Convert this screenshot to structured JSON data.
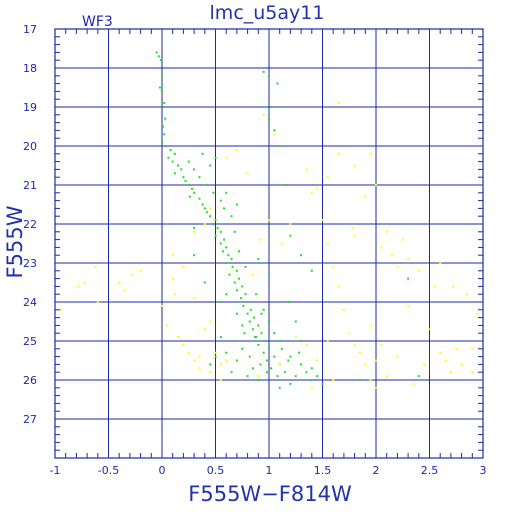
{
  "chart_data": {
    "type": "scatter",
    "title": "lmc_u5ay11",
    "chip_label": "WF3",
    "xlabel": "F555W−F814W",
    "ylabel": "F555W",
    "xlim": [
      -1,
      3
    ],
    "ylim": [
      28,
      17
    ],
    "y_inverted": true,
    "xticks": [
      "-1",
      "-0.5",
      "0",
      "0.5",
      "1",
      "1.5",
      "2",
      "2.5",
      "3"
    ],
    "xtick_values": [
      -1,
      -0.5,
      0,
      0.5,
      1,
      1.5,
      2,
      2.5,
      3
    ],
    "yticks": [
      "17",
      "18",
      "19",
      "20",
      "21",
      "22",
      "23",
      "24",
      "25",
      "26",
      "27"
    ],
    "ytick_values": [
      17,
      18,
      19,
      20,
      21,
      22,
      23,
      24,
      25,
      26,
      27
    ],
    "grid": true,
    "colors": {
      "frame": "#1a2aa8",
      "main": "#22dd22",
      "field": "#ffff00",
      "text": "#2233aa"
    },
    "series": [
      {
        "color": "#22dd22",
        "points": [
          [
            -0.05,
            17.6
          ],
          [
            -0.03,
            17.7
          ],
          [
            -0.01,
            17.8
          ],
          [
            0,
            18.2
          ],
          [
            -0.02,
            18.5
          ],
          [
            0,
            18.6
          ],
          [
            0.02,
            18.9
          ],
          [
            -0.01,
            19
          ],
          [
            0.03,
            19.3
          ],
          [
            0.01,
            19.5
          ],
          [
            0.02,
            19.7
          ],
          [
            0,
            19.9
          ],
          [
            0.04,
            20
          ],
          [
            0.08,
            20.1
          ],
          [
            0.12,
            20.2
          ],
          [
            0.06,
            20.3
          ],
          [
            0.1,
            20.4
          ],
          [
            0.15,
            20.5
          ],
          [
            0.18,
            20.6
          ],
          [
            0.12,
            20.7
          ],
          [
            0.2,
            20.8
          ],
          [
            0.22,
            20.9
          ],
          [
            0.25,
            21
          ],
          [
            0.28,
            21.1
          ],
          [
            0.3,
            21.2
          ],
          [
            0.26,
            21.3
          ],
          [
            0.35,
            21.35
          ],
          [
            0.38,
            21.5
          ],
          [
            0.4,
            21.6
          ],
          [
            0.42,
            21.7
          ],
          [
            0.45,
            21.8
          ],
          [
            0.5,
            21.9
          ],
          [
            0.48,
            22
          ],
          [
            0.52,
            22.1
          ],
          [
            0.55,
            22.2
          ],
          [
            0.5,
            22.3
          ],
          [
            0.58,
            22.4
          ],
          [
            0.55,
            22.5
          ],
          [
            0.6,
            22.6
          ],
          [
            0.57,
            22.7
          ],
          [
            0.62,
            22.8
          ],
          [
            0.65,
            22.9
          ],
          [
            0.6,
            23
          ],
          [
            0.66,
            23.1
          ],
          [
            0.7,
            23.2
          ],
          [
            0.63,
            23.3
          ],
          [
            0.72,
            23.4
          ],
          [
            0.68,
            23.5
          ],
          [
            0.75,
            23.6
          ],
          [
            0.7,
            23.7
          ],
          [
            0.78,
            23.8
          ],
          [
            0.74,
            23.9
          ],
          [
            0.8,
            24
          ],
          [
            0.76,
            24.1
          ],
          [
            0.83,
            24.2
          ],
          [
            0.8,
            24.3
          ],
          [
            0.86,
            24.4
          ],
          [
            0.82,
            24.5
          ],
          [
            0.9,
            24.6
          ],
          [
            0.85,
            24.7
          ],
          [
            0.93,
            24.8
          ],
          [
            0.88,
            24.9
          ],
          [
            0.96,
            25
          ],
          [
            0.9,
            25.1
          ],
          [
            1,
            25.2
          ],
          [
            0.95,
            25.3
          ],
          [
            1.05,
            25.4
          ],
          [
            0.98,
            25.5
          ],
          [
            1.1,
            25.6
          ],
          [
            1.02,
            25.7
          ],
          [
            1.15,
            25.8
          ],
          [
            1.08,
            25.9
          ],
          [
            1.2,
            25.4
          ],
          [
            1.3,
            25.6
          ],
          [
            1.35,
            25.8
          ],
          [
            1.4,
            25.7
          ],
          [
            1.25,
            25.9
          ],
          [
            0.75,
            25.2
          ],
          [
            0.7,
            25.5
          ],
          [
            0.65,
            25.8
          ],
          [
            0.8,
            25.9
          ],
          [
            0.6,
            25.3
          ],
          [
            0.55,
            24.9
          ],
          [
            0.5,
            25.4
          ],
          [
            0.45,
            25.6
          ],
          [
            1.45,
            25.9
          ],
          [
            1.38,
            26
          ],
          [
            1.2,
            26.1
          ],
          [
            1.1,
            26.2
          ],
          [
            0.9,
            26
          ],
          [
            0.85,
            25.7
          ],
          [
            1.0,
            24.5
          ],
          [
            1.05,
            24.8
          ],
          [
            1.1,
            25
          ],
          [
            0.95,
            24.2
          ],
          [
            0.88,
            23.8
          ],
          [
            0.78,
            23.1
          ],
          [
            0.72,
            22.7
          ],
          [
            0.68,
            22.2
          ],
          [
            0.65,
            21.8
          ],
          [
            0.58,
            21.6
          ],
          [
            0.55,
            21.4
          ],
          [
            0.48,
            21.2
          ],
          [
            0.42,
            21
          ],
          [
            0.35,
            20.8
          ],
          [
            0.3,
            20.6
          ],
          [
            0.38,
            20.2
          ],
          [
            0.45,
            20.5
          ],
          [
            0.5,
            20.3
          ],
          [
            0.25,
            20.4
          ],
          [
            0.6,
            21.2
          ],
          [
            0.7,
            21.5
          ],
          [
            0.3,
            22.1
          ],
          [
            0.4,
            23.5
          ],
          [
            0.95,
            18.1
          ],
          [
            1.0,
            18.2
          ],
          [
            1.08,
            18.4
          ],
          [
            1.02,
            19
          ],
          [
            1.0,
            19.3
          ],
          [
            1.05,
            19.6
          ],
          [
            1.1,
            20
          ],
          [
            1.15,
            21
          ],
          [
            1.2,
            22.3
          ],
          [
            1.3,
            22.8
          ],
          [
            1.4,
            23.2
          ],
          [
            1.0,
            23.3
          ],
          [
            0.9,
            22.9
          ],
          [
            1.18,
            24
          ],
          [
            1.25,
            24.5
          ],
          [
            1.3,
            25
          ],
          [
            1.5,
            26.1
          ],
          [
            1.85,
            26
          ],
          [
            2.4,
            25.9
          ],
          [
            2.3,
            23.4
          ],
          [
            0.3,
            22.8
          ],
          [
            0.55,
            24
          ],
          [
            0.6,
            23.8
          ],
          [
            0.75,
            24.6
          ],
          [
            0.7,
            24.3
          ],
          [
            0.68,
            25
          ],
          [
            0.82,
            25.4
          ],
          [
            0.92,
            25.6
          ],
          [
            0.98,
            25.8
          ],
          [
            1.12,
            25.2
          ],
          [
            1.18,
            25.5
          ],
          [
            1.28,
            25.3
          ],
          [
            0.87,
            24.9
          ],
          [
            0.93,
            24.3
          ],
          [
            0.77,
            24.8
          ]
        ]
      },
      {
        "color": "#ffff00",
        "points": [
          [
            -0.95,
            24.2
          ],
          [
            -0.78,
            23.6
          ],
          [
            -0.72,
            23.5
          ],
          [
            -0.62,
            23.1
          ],
          [
            -0.6,
            24
          ],
          [
            -0.4,
            23.5
          ],
          [
            -0.35,
            23.7
          ],
          [
            -0.28,
            23.3
          ],
          [
            -0.2,
            23.2
          ],
          [
            0.1,
            23.4
          ],
          [
            0.12,
            23.8
          ],
          [
            0.0,
            24.1
          ],
          [
            0.05,
            24.6
          ],
          [
            0.15,
            24.9
          ],
          [
            0.2,
            25.1
          ],
          [
            0.25,
            25.3
          ],
          [
            0.3,
            25.5
          ],
          [
            0.35,
            25.4
          ],
          [
            0.4,
            24.7
          ],
          [
            0.45,
            24.5
          ],
          [
            0.5,
            25.3
          ],
          [
            0.55,
            25.6
          ],
          [
            0.6,
            25.5
          ],
          [
            0.3,
            23.9
          ],
          [
            0.2,
            23.1
          ],
          [
            0.1,
            22.8
          ],
          [
            0.3,
            22.2
          ],
          [
            0.4,
            22.0
          ],
          [
            0.45,
            21.6
          ],
          [
            0.6,
            20.3
          ],
          [
            0.7,
            20.1
          ],
          [
            0.8,
            20.7
          ],
          [
            1.05,
            19.7
          ],
          [
            1.35,
            20.6
          ],
          [
            1.45,
            21.1
          ],
          [
            1.55,
            20.8
          ],
          [
            1.6,
            23.1
          ],
          [
            1.65,
            23.6
          ],
          [
            1.7,
            24.2
          ],
          [
            1.75,
            24.8
          ],
          [
            1.8,
            25.1
          ],
          [
            1.85,
            25.3
          ],
          [
            1.9,
            25.6
          ],
          [
            1.95,
            24.6
          ],
          [
            2.0,
            25.5
          ],
          [
            1.65,
            20.2
          ],
          [
            1.8,
            20.5
          ],
          [
            1.9,
            21.3
          ],
          [
            1.78,
            22.1
          ],
          [
            1.8,
            22.3
          ],
          [
            1.95,
            20.2
          ],
          [
            2.0,
            21.0
          ],
          [
            2.05,
            22.6
          ],
          [
            2.1,
            22.2
          ],
          [
            2.15,
            22.8
          ],
          [
            2.2,
            23.1
          ],
          [
            2.25,
            22.4
          ],
          [
            2.3,
            22.9
          ],
          [
            2.4,
            23.2
          ],
          [
            2.3,
            24.1
          ],
          [
            2.5,
            24.7
          ],
          [
            2.55,
            23.6
          ],
          [
            2.6,
            25.3
          ],
          [
            2.7,
            25.8
          ],
          [
            2.8,
            25.6
          ],
          [
            2.9,
            25.8
          ],
          [
            3.0,
            25.8
          ],
          [
            2.9,
            25.2
          ],
          [
            2.45,
            25.6
          ],
          [
            2.2,
            25.4
          ],
          [
            2.1,
            25.9
          ],
          [
            2.05,
            25.1
          ],
          [
            2.0,
            26.2
          ],
          [
            1.55,
            22.5
          ],
          [
            1.5,
            21.9
          ],
          [
            1.4,
            21.2
          ],
          [
            1.45,
            25.5
          ],
          [
            1.55,
            25.0
          ],
          [
            1.6,
            26.0
          ],
          [
            1.2,
            22.0
          ],
          [
            1.12,
            22.5
          ],
          [
            1.0,
            21.9
          ],
          [
            0.92,
            22.4
          ],
          [
            0.85,
            23.3
          ],
          [
            1.25,
            24.9
          ],
          [
            1.35,
            25.1
          ],
          [
            1.1,
            25.6
          ],
          [
            0.9,
            25.9
          ],
          [
            1.4,
            26.2
          ],
          [
            0.95,
            19.2
          ],
          [
            1.65,
            18.9
          ],
          [
            2.6,
            23.0
          ],
          [
            2.72,
            23.6
          ],
          [
            2.85,
            23.8
          ],
          [
            2.95,
            24.3
          ],
          [
            2.75,
            25.2
          ],
          [
            2.65,
            25.5
          ],
          [
            2.35,
            26.1
          ],
          [
            1.95,
            26.0
          ],
          [
            0.55,
            26.0
          ],
          [
            0.45,
            25.8
          ],
          [
            0.35,
            25.7
          ]
        ]
      }
    ]
  }
}
